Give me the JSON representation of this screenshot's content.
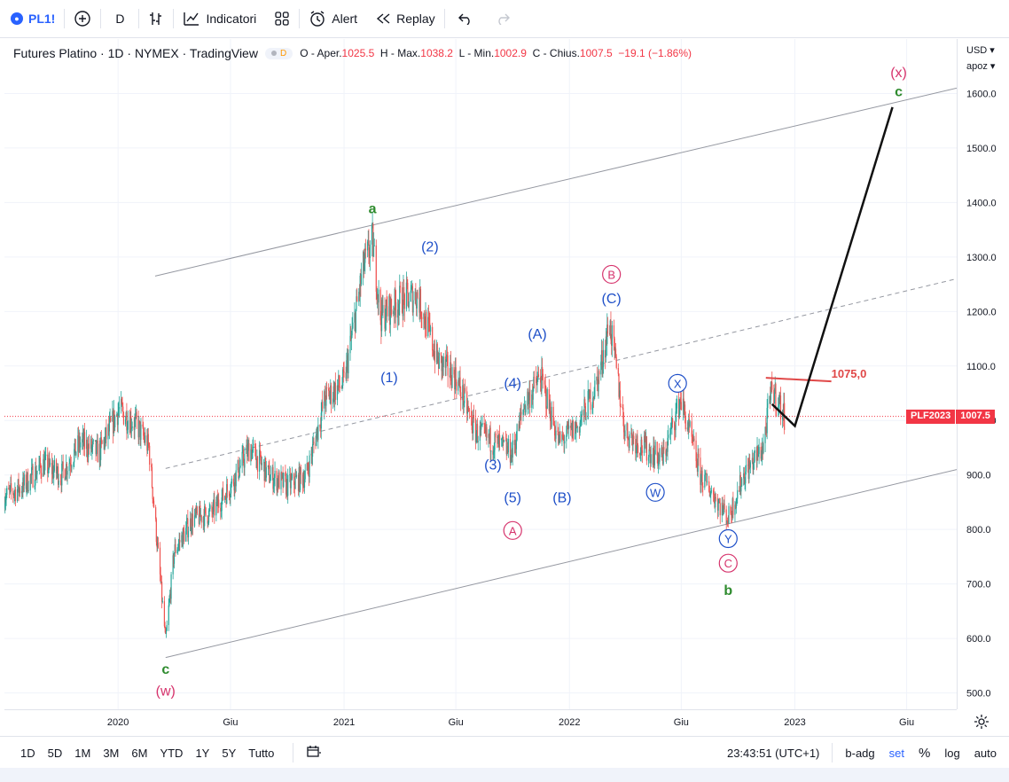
{
  "toolbar": {
    "symbol": "PL1!",
    "interval": "D",
    "indicators_label": "Indicatori",
    "alert_label": "Alert",
    "replay_label": "Replay"
  },
  "legend": {
    "title": "Futures Platino · 1D · NYMEX · TradingView",
    "badge": "D",
    "open_label": "O - Aper.",
    "open": "1025.5",
    "high_label": "H - Max.",
    "high": "1038.2",
    "low_label": "L - Min.",
    "low": "1002.9",
    "close_label": "C - Chius.",
    "close": "1007.5",
    "change": "−19.1 (−1.86%)"
  },
  "axis": {
    "currency": "USD",
    "adjust": "apoz"
  },
  "price_tag": {
    "symbol": "PLF2023",
    "value": "1007.5"
  },
  "bottom": {
    "ranges": [
      "1D",
      "5D",
      "1M",
      "3M",
      "6M",
      "YTD",
      "1Y",
      "5Y",
      "Tutto"
    ],
    "clock": "23:43:51 (UTC+1)",
    "opts": [
      "b-adg",
      "set",
      "%",
      "log",
      "auto"
    ]
  },
  "colors": {
    "up": "#26a69a",
    "down": "#ef5350",
    "wave_blue": "#1e4fc8",
    "wave_red": "#d6336c",
    "wave_green": "#2e8b2e",
    "accent": "#2962ff"
  },
  "chart_data": {
    "type": "line",
    "title": "Futures Platino · 1D · NYMEX · TradingView",
    "y_ticks": [
      500,
      600,
      700,
      800,
      900,
      1000,
      1100,
      1200,
      1300,
      1400,
      1500,
      1600
    ],
    "y_tick_labels": [
      "500.0",
      "600.0",
      "700.0",
      "800.0",
      "900.0",
      "1000.0",
      "1100.0",
      "1200.0",
      "1300.0",
      "1400.0",
      "1500.0",
      "1600.0"
    ],
    "ylim": [
      470,
      1700
    ],
    "xlim": [
      "2019-07-01",
      "2023-09-20"
    ],
    "x_ticks": [
      "2020-01-01",
      "2020-07-01",
      "2021-01-01",
      "2021-07-01",
      "2022-01-01",
      "2022-07-01",
      "2023-01-01",
      "2023-07-01"
    ],
    "x_tick_labels": [
      "2020",
      "Giu",
      "2021",
      "Giu",
      "2022",
      "Giu",
      "2023",
      "Giu"
    ],
    "series": [
      {
        "x": [
          "2019-07-01",
          "2019-08-01",
          "2019-09-01",
          "2019-10-01",
          "2019-11-01",
          "2019-12-01",
          "2020-01-02",
          "2020-02-01",
          "2020-02-20",
          "2020-03-18",
          "2020-04-01",
          "2020-05-01",
          "2020-06-01",
          "2020-07-01",
          "2020-08-01",
          "2020-09-01",
          "2020-10-01",
          "2020-11-01",
          "2020-12-01",
          "2021-01-01",
          "2021-02-01",
          "2021-02-16",
          "2021-03-01",
          "2021-04-01",
          "2021-04-30",
          "2021-06-01",
          "2021-07-01",
          "2021-08-01",
          "2021-09-01",
          "2021-09-30",
          "2021-10-20",
          "2021-11-15",
          "2021-12-15",
          "2022-01-15",
          "2022-02-15",
          "2022-03-07",
          "2022-04-01",
          "2022-05-01",
          "2022-06-01",
          "2022-06-30",
          "2022-08-01",
          "2022-08-30",
          "2022-09-15",
          "2022-10-10",
          "2022-11-10",
          "2022-11-25",
          "2022-12-15"
        ],
        "values": [
          860,
          880,
          920,
          900,
          960,
          940,
          1020,
          990,
          950,
          595,
          760,
          820,
          830,
          880,
          950,
          900,
          880,
          900,
          1040,
          1070,
          1280,
          1330,
          1190,
          1220,
          1230,
          1110,
          1080,
          980,
          960,
          940,
          1030,
          1080,
          960,
          990,
          1070,
          1180,
          980,
          950,
          930,
          1040,
          900,
          850,
          820,
          900,
          950,
          1060,
          1007.5
        ]
      }
    ],
    "channel_lines": [
      {
        "x": [
          "2020-03-18",
          "2023-09-20"
        ],
        "values": [
          565,
          910
        ],
        "style": "solid"
      },
      {
        "x": [
          "2020-03-01",
          "2023-09-20"
        ],
        "values": [
          1265,
          1610
        ],
        "style": "solid"
      },
      {
        "x": [
          "2020-03-18",
          "2023-09-20"
        ],
        "values": [
          912,
          1260
        ],
        "style": "dashed"
      }
    ],
    "resistance": {
      "x": [
        "2022-11-15",
        "2023-03-01"
      ],
      "value": 1075,
      "label": "1075,0"
    },
    "projection": {
      "x": [
        "2022-11-25",
        "2023-01-01",
        "2023-06-08"
      ],
      "values": [
        1030,
        990,
        1575
      ]
    },
    "last_price": 1007.5,
    "annotations": [
      {
        "text": "c",
        "x": "2020-03-18",
        "y": 535,
        "color": "green"
      },
      {
        "text": "(w)",
        "x": "2020-03-18",
        "y": 495,
        "color": "red"
      },
      {
        "text": "a",
        "x": "2021-02-16",
        "y": 1380,
        "color": "green"
      },
      {
        "text": "(2)",
        "x": "2021-05-20",
        "y": 1310,
        "color": "blue"
      },
      {
        "text": "(1)",
        "x": "2021-03-15",
        "y": 1070,
        "color": "blue"
      },
      {
        "text": "(3)",
        "x": "2021-08-30",
        "y": 910,
        "color": "blue"
      },
      {
        "text": "(4)",
        "x": "2021-10-01",
        "y": 1060,
        "color": "blue"
      },
      {
        "text": "(5)",
        "x": "2021-10-01",
        "y": 850,
        "color": "blue"
      },
      {
        "text": "A",
        "x": "2021-10-01",
        "y": 790,
        "color": "red",
        "circled": true
      },
      {
        "text": "(A)",
        "x": "2021-11-10",
        "y": 1150,
        "color": "blue"
      },
      {
        "text": "(B)",
        "x": "2021-12-20",
        "y": 850,
        "color": "blue"
      },
      {
        "text": "B",
        "x": "2022-03-10",
        "y": 1260,
        "color": "red",
        "circled": true
      },
      {
        "text": "(C)",
        "x": "2022-03-10",
        "y": 1215,
        "color": "blue"
      },
      {
        "text": "W",
        "x": "2022-05-20",
        "y": 860,
        "color": "blue",
        "circled": true
      },
      {
        "text": "X",
        "x": "2022-06-25",
        "y": 1060,
        "color": "blue",
        "circled": true
      },
      {
        "text": "Y",
        "x": "2022-09-15",
        "y": 775,
        "color": "blue",
        "circled": true
      },
      {
        "text": "C",
        "x": "2022-09-15",
        "y": 730,
        "color": "red",
        "circled": true
      },
      {
        "text": "b",
        "x": "2022-09-15",
        "y": 680,
        "color": "green"
      },
      {
        "text": "(x)",
        "x": "2023-06-18",
        "y": 1630,
        "color": "red"
      },
      {
        "text": "c",
        "x": "2023-06-18",
        "y": 1595,
        "color": "green"
      }
    ]
  }
}
